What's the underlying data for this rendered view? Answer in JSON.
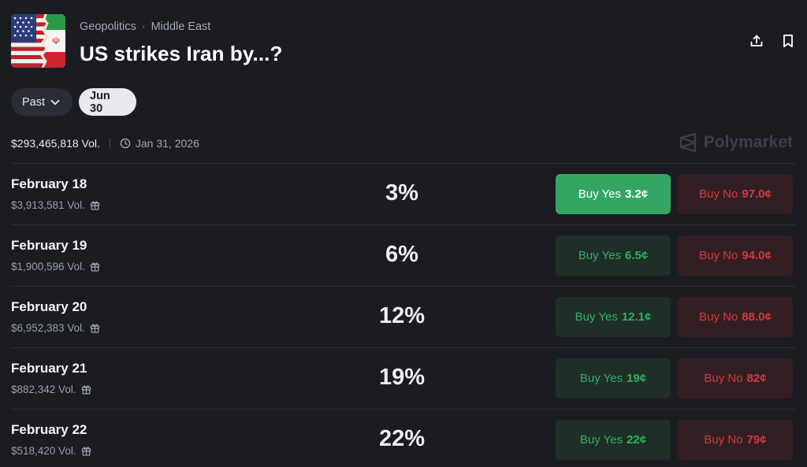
{
  "market": {
    "category": "Geopolitics",
    "subcategory": "Middle East",
    "title": "US strikes Iran by...?",
    "flag_icon": "us-iran-flag-icon"
  },
  "actions": {
    "share_icon": "share-icon",
    "bookmark_icon": "bookmark-icon"
  },
  "filters": {
    "past_label": "Past",
    "selected_date": "Jun 30"
  },
  "stats": {
    "volume": "$293,465,818 Vol.",
    "end_date": "Jan 31, 2026"
  },
  "brand": {
    "name": "Polymarket"
  },
  "colors": {
    "yes_accent": "#35a662",
    "no_accent": "#d23a3e",
    "background": "#1b1c21"
  },
  "rows": [
    {
      "name": "February 18",
      "volume": "$3,913,581 Vol.",
      "percent": "3%",
      "yes_label": "Buy Yes",
      "yes_price": "3.2¢",
      "no_label": "Buy No",
      "no_price": "97.0¢"
    },
    {
      "name": "February 19",
      "volume": "$1,900,596 Vol.",
      "percent": "6%",
      "yes_label": "Buy Yes",
      "yes_price": "6.5¢",
      "no_label": "Buy No",
      "no_price": "94.0¢"
    },
    {
      "name": "February 20",
      "volume": "$6,952,383 Vol.",
      "percent": "12%",
      "yes_label": "Buy Yes",
      "yes_price": "12.1¢",
      "no_label": "Buy No",
      "no_price": "88.0¢"
    },
    {
      "name": "February 21",
      "volume": "$882,342 Vol.",
      "percent": "19%",
      "yes_label": "Buy Yes",
      "yes_price": "19¢",
      "no_label": "Buy No",
      "no_price": "82¢"
    },
    {
      "name": "February 22",
      "volume": "$518,420 Vol.",
      "percent": "22%",
      "yes_label": "Buy Yes",
      "yes_price": "22¢",
      "no_label": "Buy No",
      "no_price": "79¢"
    }
  ]
}
